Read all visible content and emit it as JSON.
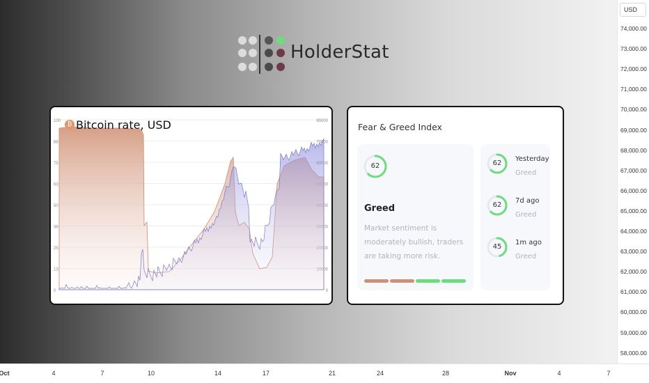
{
  "brand": {
    "name": "HolderStat",
    "dot_colors": [
      "#dcdcdc",
      "#dcdcdc",
      "#555555",
      "#6cdc7c",
      "#dcdcdc",
      "#dcdcdc",
      "#4a4a4a",
      "#6e3a48",
      "#dcdcdc",
      "#dcdcdc",
      "#4a4a4a",
      "#6e3a48"
    ]
  },
  "price_axis": {
    "currency": "USD",
    "ticks": [
      "74,000.00",
      "73,000.00",
      "72,000.00",
      "71,000.00",
      "70,000.00",
      "69,000.00",
      "68,000.00",
      "67,000.00",
      "66,000.00",
      "65,000.00",
      "64,000.00",
      "63,000.00",
      "62,000.00",
      "61,000.00",
      "60,000.00",
      "59,000.00",
      "58,000.00"
    ]
  },
  "time_axis": {
    "ticks": [
      {
        "label": "Oct",
        "bold": true
      },
      {
        "label": "4",
        "bold": false
      },
      {
        "label": "7",
        "bold": false
      },
      {
        "label": "10",
        "bold": false
      },
      {
        "label": "14",
        "bold": false
      },
      {
        "label": "17",
        "bold": false
      },
      {
        "label": "21",
        "bold": false
      },
      {
        "label": "24",
        "bold": false
      },
      {
        "label": "28",
        "bold": false
      },
      {
        "label": "Nov",
        "bold": true
      },
      {
        "label": "4",
        "bold": false
      },
      {
        "label": "7",
        "bold": false
      }
    ]
  },
  "btc_card": {
    "title": "Bitcoin rate, USD",
    "icon": "bitcoin-icon",
    "left_ticks": [
      "100",
      "88",
      "75",
      "63",
      "50",
      "38",
      "25",
      "13",
      "0"
    ],
    "right_ticks": [
      "80000",
      "70000",
      "60000",
      "50000",
      "40000",
      "30000",
      "20000",
      "10000",
      "0"
    ],
    "colors": {
      "index": "#d49a80",
      "price": "#7a7ac8"
    }
  },
  "fear_greed": {
    "title": "Fear & Greed Index",
    "current": {
      "value": 62,
      "label": "Greed",
      "description": "Market sentiment is moderately bullish, traders are taking more risk."
    },
    "scale_colors": [
      "#c99274",
      "#c99274",
      "#6cdc7c",
      "#6cdc7c"
    ],
    "history": [
      {
        "when": "Yesterday",
        "value": 62,
        "status": "Greed"
      },
      {
        "when": "7d ago",
        "value": 62,
        "status": "Greed"
      },
      {
        "when": "1m ago",
        "value": 45,
        "status": "Greed"
      }
    ],
    "colors": {
      "greed": "#6cdc7c",
      "track": "#e6e8ec"
    }
  }
}
